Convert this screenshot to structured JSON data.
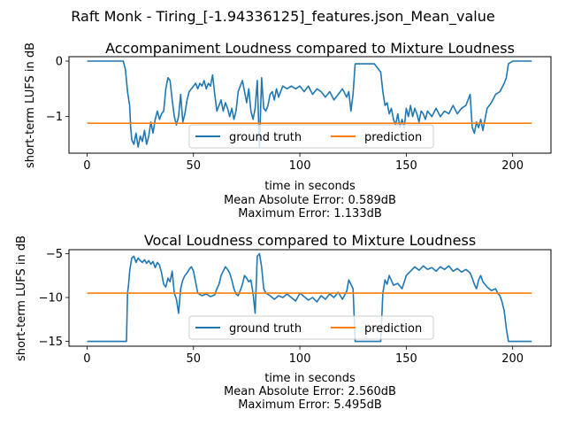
{
  "suptitle": "Raft Monk - Tiring_[-1.94336125]_features.json_Mean_value",
  "colors": {
    "ground_truth": "#1f77b4",
    "prediction": "#ff7f0e"
  },
  "chart_data": [
    {
      "type": "line",
      "title": "Accompaniment Loudness compared to Mixture Loudness",
      "xlabel": "time in seconds",
      "ylabel": "short-term LUFS in dB",
      "xlim": [
        -8.5,
        218
      ],
      "ylim": [
        -1.66,
        0.08
      ],
      "xticks": [
        0,
        50,
        100,
        150,
        200
      ],
      "yticks": [
        0,
        -1
      ],
      "ytick_labels": [
        "0",
        "−1"
      ],
      "xtick_labels": [
        "0",
        "50",
        "100",
        "150",
        "200"
      ],
      "legend": {
        "placement": "lower center",
        "entries": [
          "ground truth",
          "prediction"
        ]
      },
      "series": [
        {
          "name": "ground truth",
          "x": [
            0,
            17,
            18,
            19,
            20,
            20.5,
            21,
            22,
            23,
            24,
            25,
            26,
            27,
            28,
            29,
            30,
            31,
            32,
            33,
            34,
            35,
            36,
            37,
            38,
            39,
            40,
            41,
            42,
            43,
            44,
            45,
            46,
            47,
            48,
            49,
            50,
            51,
            52,
            53,
            54,
            55,
            56,
            57,
            58,
            59,
            60,
            61,
            62,
            63,
            64,
            65,
            66,
            67,
            68,
            69,
            70,
            71,
            72,
            73,
            74,
            75,
            76,
            77,
            78,
            79,
            80,
            81,
            82,
            83,
            84,
            85,
            86,
            87,
            88,
            89,
            90,
            92,
            94,
            96,
            98,
            100,
            102,
            104,
            106,
            108,
            110,
            112,
            114,
            116,
            118,
            120,
            122,
            123,
            124,
            125,
            126,
            135,
            138,
            139,
            140,
            141,
            142,
            143,
            144,
            145,
            146,
            147,
            148,
            149,
            150,
            151,
            152,
            153,
            154,
            155,
            156,
            157,
            158,
            159,
            160,
            162,
            164,
            166,
            168,
            170,
            172,
            174,
            176,
            178,
            180,
            181,
            182,
            183,
            184,
            185,
            186,
            188,
            190,
            192,
            194,
            196,
            197,
            198,
            200,
            209
          ],
          "y": [
            0,
            0,
            -0.15,
            -0.55,
            -0.8,
            -1.2,
            -1.42,
            -1.5,
            -1.3,
            -1.55,
            -1.35,
            -1.45,
            -1.25,
            -1.5,
            -1.35,
            -1.1,
            -1.3,
            -1.05,
            -0.9,
            -1.05,
            -0.95,
            -0.9,
            -0.5,
            -0.3,
            -0.35,
            -0.7,
            -1.0,
            -1.15,
            -1.0,
            -0.6,
            -1.1,
            -0.95,
            -0.7,
            -0.55,
            -0.5,
            -0.45,
            -0.4,
            -0.5,
            -0.4,
            -0.45,
            -0.35,
            -0.5,
            -0.4,
            -0.45,
            -0.25,
            -0.6,
            -0.9,
            -0.8,
            -0.7,
            -0.9,
            -0.75,
            -0.85,
            -1.0,
            -0.85,
            -1.05,
            -0.9,
            -0.55,
            -0.45,
            -0.35,
            -0.55,
            -0.75,
            -0.5,
            -0.9,
            -1.05,
            -0.85,
            -0.35,
            -1.55,
            -0.3,
            -0.85,
            -0.9,
            -0.8,
            -0.6,
            -0.55,
            -0.7,
            -0.5,
            -0.65,
            -0.45,
            -0.5,
            -0.45,
            -0.5,
            -0.45,
            -0.55,
            -0.45,
            -0.6,
            -0.5,
            -0.55,
            -0.65,
            -0.55,
            -0.7,
            -0.6,
            -0.5,
            -0.65,
            -0.55,
            -0.9,
            -0.6,
            -0.05,
            -0.05,
            -0.2,
            -0.55,
            -0.8,
            -0.75,
            -0.95,
            -0.85,
            -1.05,
            -1.15,
            -0.95,
            -1.2,
            -1.05,
            -1.2,
            -0.85,
            -1.0,
            -0.8,
            -1.0,
            -0.85,
            -0.95,
            -1.1,
            -0.9,
            -0.95,
            -1.05,
            -0.9,
            -1.0,
            -0.85,
            -1.0,
            -0.9,
            -0.95,
            -0.8,
            -0.95,
            -0.85,
            -0.8,
            -0.6,
            -1.2,
            -1.3,
            -1.1,
            -1.2,
            -1.05,
            -1.25,
            -0.85,
            -0.75,
            -0.6,
            -0.55,
            -0.4,
            -0.3,
            -0.05,
            0,
            0
          ]
        },
        {
          "name": "prediction",
          "x": [
            0,
            209
          ],
          "y": [
            -1.12,
            -1.12
          ]
        }
      ],
      "error_lines": [
        "Mean Absolute Error: 0.589dB",
        "Maximum Error: 1.133dB"
      ]
    },
    {
      "type": "line",
      "title": "Vocal Loudness compared to Mixture Loudness",
      "xlabel": "time in seconds",
      "ylabel": "short-term LUFS in dB",
      "xlim": [
        -8.5,
        218
      ],
      "ylim": [
        -15.55,
        -4.55
      ],
      "xticks": [
        0,
        50,
        100,
        150,
        200
      ],
      "yticks": [
        -5,
        -10,
        -15
      ],
      "ytick_labels": [
        "−5",
        "−10",
        "−15"
      ],
      "xtick_labels": [
        "0",
        "50",
        "100",
        "150",
        "200"
      ],
      "legend": {
        "placement": "lower center",
        "entries": [
          "ground truth",
          "prediction"
        ]
      },
      "series": [
        {
          "name": "ground truth",
          "x": [
            0,
            18.5,
            19,
            19.5,
            20,
            21,
            22,
            23,
            24,
            25,
            26,
            27,
            28,
            29,
            30,
            31,
            32,
            33,
            34,
            35,
            36,
            37,
            38,
            39,
            40,
            41,
            42,
            43,
            44,
            45,
            46,
            47,
            48,
            49,
            50,
            52,
            54,
            56,
            58,
            60,
            61,
            62,
            63,
            64,
            65,
            66,
            67,
            68,
            69,
            70,
            71,
            72,
            73,
            74,
            75,
            76,
            77,
            78,
            79,
            80,
            81,
            82,
            83,
            84,
            86,
            88,
            90,
            92,
            94,
            96,
            98,
            100,
            102,
            104,
            106,
            108,
            110,
            112,
            114,
            116,
            118,
            120,
            122,
            123,
            124,
            125,
            126,
            127,
            135,
            138,
            139,
            140,
            141,
            142,
            144,
            146,
            148,
            150,
            152,
            154,
            156,
            158,
            160,
            162,
            164,
            166,
            168,
            170,
            172,
            174,
            176,
            178,
            180,
            181,
            182,
            183,
            184,
            185,
            186,
            188,
            190,
            192,
            193,
            194,
            195,
            196,
            197,
            198,
            200,
            209
          ],
          "y": [
            -15,
            -15,
            -9.5,
            -8.5,
            -7.0,
            -5.5,
            -5.3,
            -6.0,
            -5.5,
            -5.8,
            -6.0,
            -5.7,
            -6.1,
            -5.8,
            -6.2,
            -5.9,
            -6.6,
            -6.0,
            -6.3,
            -7.2,
            -8.5,
            -8.8,
            -7.8,
            -8.2,
            -7.0,
            -9.5,
            -10.2,
            -11.8,
            -9.0,
            -8.0,
            -7.5,
            -7.2,
            -6.8,
            -6.5,
            -7.0,
            -9.5,
            -9.8,
            -9.6,
            -9.9,
            -9.7,
            -9.0,
            -8.5,
            -7.5,
            -7.0,
            -6.5,
            -6.8,
            -7.2,
            -8.0,
            -9.0,
            -9.6,
            -9.8,
            -9.2,
            -8.5,
            -7.5,
            -7.8,
            -8.2,
            -8.0,
            -9.5,
            -11.8,
            -5.3,
            -5.0,
            -6.5,
            -9.0,
            -9.5,
            -9.8,
            -10.2,
            -9.8,
            -10.0,
            -9.6,
            -10.0,
            -10.4,
            -9.5,
            -9.9,
            -10.3,
            -10.0,
            -10.5,
            -9.8,
            -10.2,
            -9.6,
            -10.0,
            -9.4,
            -10.2,
            -9.3,
            -8.0,
            -8.5,
            -9.0,
            -15,
            -15,
            -15,
            -15,
            -9.5,
            -8.0,
            -8.5,
            -7.5,
            -8.6,
            -8.4,
            -9.0,
            -7.5,
            -7.0,
            -6.5,
            -6.9,
            -6.4,
            -6.8,
            -6.6,
            -7.0,
            -6.5,
            -6.8,
            -6.4,
            -7.0,
            -6.7,
            -7.1,
            -6.8,
            -7.2,
            -7.8,
            -8.5,
            -9.0,
            -8.0,
            -7.5,
            -8.2,
            -8.8,
            -9.2,
            -9.0,
            -9.5,
            -9.8,
            -10.5,
            -11.5,
            -13.5,
            -15,
            -15,
            -15
          ]
        },
        {
          "name": "prediction",
          "x": [
            0,
            209
          ],
          "y": [
            -9.5,
            -9.5
          ]
        }
      ],
      "error_lines": [
        "Mean Absolute Error: 2.560dB",
        "Maximum Error: 5.495dB"
      ]
    }
  ]
}
